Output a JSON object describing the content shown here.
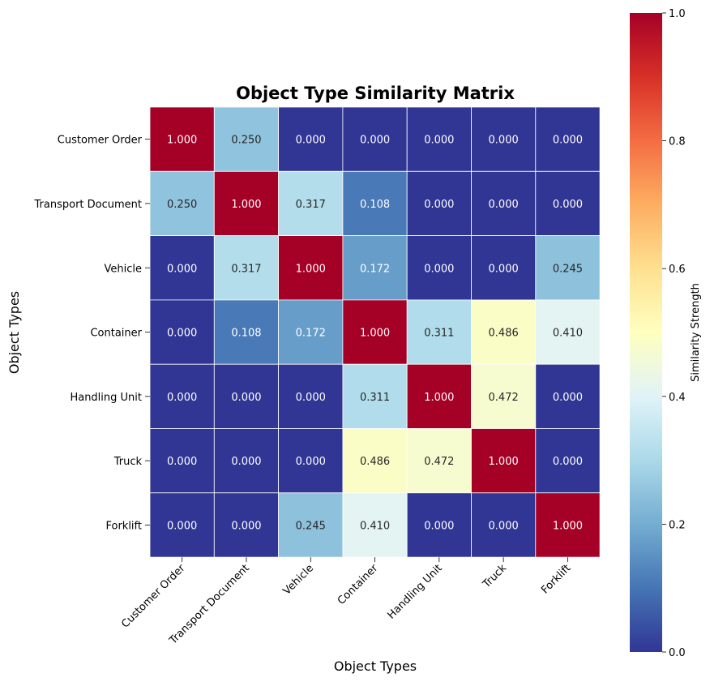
{
  "chart_data": {
    "type": "heatmap",
    "title": "Object Type Similarity Matrix",
    "xlabel": "Object Types",
    "ylabel": "Object Types",
    "colorbar_label": "Similarity Strength",
    "colormap": "RdYlBu_r",
    "vlim": [
      0,
      1
    ],
    "colorbar_ticks": [
      "0.0",
      "0.2",
      "0.4",
      "0.6",
      "0.8",
      "1.0"
    ],
    "categories": [
      "Customer Order",
      "Transport Document",
      "Vehicle",
      "Container",
      "Handling Unit",
      "Truck",
      "Forklift"
    ],
    "values": [
      [
        1.0,
        0.25,
        0.0,
        0.0,
        0.0,
        0.0,
        0.0
      ],
      [
        0.25,
        1.0,
        0.317,
        0.108,
        0.0,
        0.0,
        0.0
      ],
      [
        0.0,
        0.317,
        1.0,
        0.172,
        0.0,
        0.0,
        0.245
      ],
      [
        0.0,
        0.108,
        0.172,
        1.0,
        0.311,
        0.486,
        0.41
      ],
      [
        0.0,
        0.0,
        0.0,
        0.311,
        1.0,
        0.472,
        0.0
      ],
      [
        0.0,
        0.0,
        0.0,
        0.486,
        0.472,
        1.0,
        0.0
      ],
      [
        0.0,
        0.0,
        0.245,
        0.41,
        0.0,
        0.0,
        1.0
      ]
    ]
  }
}
